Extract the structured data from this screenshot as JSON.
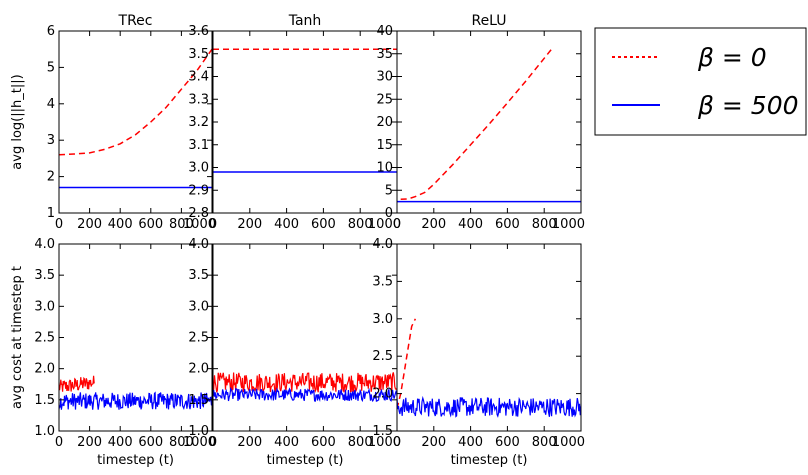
{
  "colors": {
    "beta0": "#ff0000",
    "beta500": "#0000ff",
    "axis": "#000000",
    "background": "#ffffff"
  },
  "legend": {
    "placement": "top-right",
    "entries": [
      {
        "label": "β = 0",
        "style": "dashed",
        "color": "#ff0000"
      },
      {
        "label": "β = 500",
        "style": "solid",
        "color": "#0000ff"
      }
    ]
  },
  "chart_data": [
    {
      "type": "line",
      "title": "TRec",
      "xlabel": "",
      "ylabel": "avg log(||h_t||)",
      "xlim": [
        0,
        1000
      ],
      "ylim": [
        1,
        6
      ],
      "xticks": [
        0,
        200,
        400,
        600,
        800,
        1000
      ],
      "xtick_labels": [
        "0",
        "200",
        "400",
        "600",
        "800",
        "1000"
      ],
      "yticks": [
        1,
        2,
        3,
        4,
        5,
        6
      ],
      "ytick_labels": [
        "1",
        "2",
        "3",
        "4",
        "5",
        "6"
      ],
      "series": [
        {
          "name": "β = 0",
          "color": "#ff0000",
          "style": "dashed",
          "x": [
            0,
            100,
            200,
            300,
            400,
            500,
            600,
            700,
            800,
            900,
            1000
          ],
          "y": [
            2.6,
            2.62,
            2.65,
            2.75,
            2.9,
            3.15,
            3.5,
            3.9,
            4.4,
            4.9,
            5.5
          ]
        },
        {
          "name": "β = 500",
          "color": "#0000ff",
          "style": "solid",
          "x": [
            0,
            1000
          ],
          "y": [
            1.7,
            1.7
          ]
        }
      ]
    },
    {
      "type": "line",
      "title": "Tanh",
      "xlabel": "",
      "ylabel": "",
      "xlim": [
        0,
        1000
      ],
      "ylim": [
        2.8,
        3.6
      ],
      "xticks": [
        0,
        200,
        400,
        600,
        800,
        1000
      ],
      "xtick_labels": [
        "0",
        "200",
        "400",
        "600",
        "800",
        "1000"
      ],
      "yticks": [
        2.8,
        2.9,
        3.0,
        3.1,
        3.2,
        3.3,
        3.4,
        3.5,
        3.6
      ],
      "ytick_labels": [
        "2.8",
        "2.9",
        "3.0",
        "3.1",
        "3.2",
        "3.3",
        "3.4",
        "3.5",
        "3.6"
      ],
      "series": [
        {
          "name": "β = 0",
          "color": "#ff0000",
          "style": "dashed",
          "x": [
            0,
            1000
          ],
          "y": [
            3.52,
            3.52
          ]
        },
        {
          "name": "β = 500",
          "color": "#0000ff",
          "style": "solid",
          "x": [
            0,
            1000
          ],
          "y": [
            2.98,
            2.98
          ]
        }
      ]
    },
    {
      "type": "line",
      "title": "ReLU",
      "xlabel": "",
      "ylabel": "",
      "xlim": [
        0,
        1000
      ],
      "ylim": [
        0,
        40
      ],
      "xticks": [
        0,
        200,
        400,
        600,
        800,
        1000
      ],
      "xtick_labels": [
        "0",
        "200",
        "400",
        "600",
        "800",
        "1000"
      ],
      "yticks": [
        0,
        5,
        10,
        15,
        20,
        25,
        30,
        35,
        40
      ],
      "ytick_labels": [
        "0",
        "5",
        "10",
        "15",
        "20",
        "25",
        "30",
        "35",
        "40"
      ],
      "series": [
        {
          "name": "β = 0",
          "color": "#ff0000",
          "style": "dashed",
          "x": [
            20,
            60,
            100,
            150,
            200,
            300,
            400,
            500,
            600,
            700,
            800,
            850
          ],
          "y": [
            3,
            3.1,
            3.6,
            4.5,
            6.3,
            10.5,
            15,
            19.5,
            24.2,
            29,
            34,
            36.5
          ]
        },
        {
          "name": "β = 500",
          "color": "#0000ff",
          "style": "solid",
          "x": [
            0,
            1000
          ],
          "y": [
            2.5,
            2.5
          ]
        }
      ]
    },
    {
      "type": "line",
      "title": "",
      "xlabel": "timestep (t)",
      "ylabel": "avg cost at timestep t",
      "xlim": [
        0,
        1000
      ],
      "ylim": [
        1.0,
        4.0
      ],
      "xticks": [
        0,
        200,
        400,
        600,
        800,
        1000
      ],
      "xtick_labels": [
        "0",
        "200",
        "400",
        "600",
        "800",
        "1000"
      ],
      "yticks": [
        1.0,
        1.5,
        2.0,
        2.5,
        3.0,
        3.5,
        4.0
      ],
      "ytick_labels": [
        "1.0",
        "1.5",
        "2.0",
        "2.5",
        "3.0",
        "3.5",
        "4.0"
      ],
      "series": [
        {
          "name": "β = 0",
          "color": "#ff0000",
          "style": "noisy",
          "x_start": 0,
          "x_end": 230,
          "base_y": [
            1.7,
            1.78
          ],
          "noise": 0.12
        },
        {
          "name": "β = 500",
          "color": "#0000ff",
          "style": "noisy",
          "x_start": 0,
          "x_end": 1000,
          "base_y": [
            1.48,
            1.48
          ],
          "noise": 0.14
        }
      ]
    },
    {
      "type": "line",
      "title": "",
      "xlabel": "timestep (t)",
      "ylabel": "",
      "xlim": [
        0,
        1000
      ],
      "ylim": [
        1.0,
        4.0
      ],
      "xticks": [
        0,
        200,
        400,
        600,
        800,
        1000
      ],
      "xtick_labels": [
        "0",
        "200",
        "400",
        "600",
        "800",
        "1000"
      ],
      "yticks": [
        1.0,
        1.5,
        2.0,
        2.5,
        3.0,
        3.5,
        4.0
      ],
      "ytick_labels": [
        "1.0",
        "1.5",
        "2.0",
        "2.5",
        "3.0",
        "3.5",
        "4.0"
      ],
      "series": [
        {
          "name": "β = 0",
          "color": "#ff0000",
          "style": "noisy",
          "x_start": 0,
          "x_end": 1000,
          "base_y": [
            1.78,
            1.78
          ],
          "noise": 0.16
        },
        {
          "name": "β = 500",
          "color": "#0000ff",
          "style": "noisy",
          "x_start": 0,
          "x_end": 1000,
          "base_y": [
            1.58,
            1.58
          ],
          "noise": 0.1
        }
      ]
    },
    {
      "type": "line",
      "title": "",
      "xlabel": "timestep (t)",
      "ylabel": "",
      "xlim": [
        0,
        1000
      ],
      "ylim": [
        1.5,
        4.0
      ],
      "xticks": [
        0,
        200,
        400,
        600,
        800,
        1000
      ],
      "xtick_labels": [
        "0",
        "200",
        "400",
        "600",
        "800",
        "1000"
      ],
      "yticks": [
        1.5,
        2.0,
        2.5,
        3.0,
        3.5,
        4.0
      ],
      "ytick_labels": [
        "1.5",
        "2.0",
        "2.5",
        "3.0",
        "3.5",
        "4.0"
      ],
      "series": [
        {
          "name": "β = 0",
          "color": "#ff0000",
          "style": "dashed",
          "x": [
            0,
            20,
            40,
            60,
            80,
            100
          ],
          "y": [
            1.8,
            2.0,
            2.3,
            2.6,
            2.9,
            3.0
          ]
        },
        {
          "name": "β = 500",
          "color": "#0000ff",
          "style": "noisy",
          "x_start": 0,
          "x_end": 1000,
          "base_y": [
            1.82,
            1.82
          ],
          "noise": 0.13
        }
      ]
    }
  ]
}
